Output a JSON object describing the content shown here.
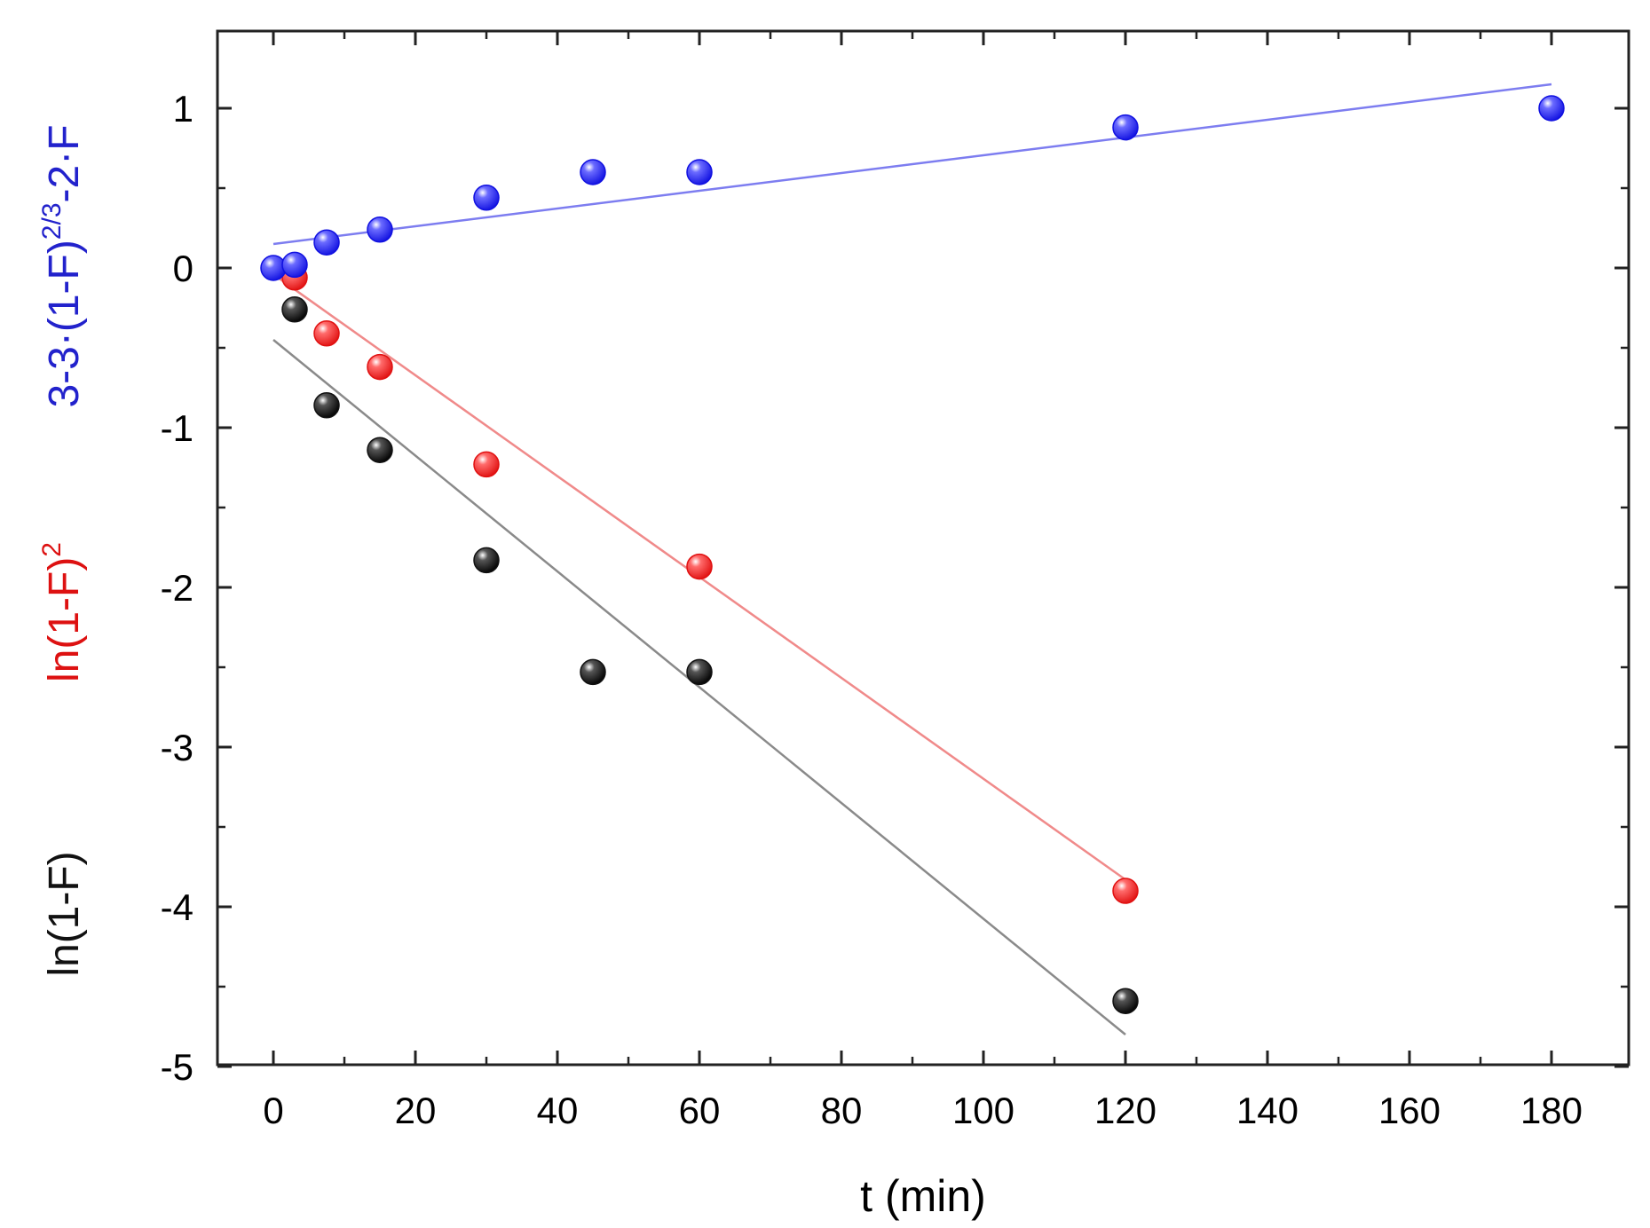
{
  "chart_data": {
    "type": "scatter",
    "xlabel": "t (min)",
    "xlim": [
      -8,
      190
    ],
    "ylim": [
      -5,
      1.5
    ],
    "x_ticks": [
      0,
      20,
      40,
      60,
      80,
      100,
      120,
      140,
      160,
      180
    ],
    "y_ticks": [
      -5,
      -4,
      -3,
      -2,
      -1,
      0,
      1
    ],
    "grid": false,
    "ylabels": [
      {
        "base": "3-3·(1-F)",
        "sup": "2/3",
        "tail": "-2·F",
        "color": "#2222cc"
      },
      {
        "base": "ln(1-F)",
        "sup": "2",
        "tail": "",
        "color": "#dd1111"
      },
      {
        "base": "ln(1-F)",
        "sup": "",
        "tail": "",
        "color": "#111111"
      }
    ],
    "series": [
      {
        "name": "3-3·(1-F)^2/3-2·F",
        "color": "#1010e0",
        "line_color": "#7d7df0",
        "x": [
          0,
          3,
          7.5,
          15,
          30,
          45,
          60,
          120,
          180
        ],
        "y": [
          0.0,
          0.02,
          0.16,
          0.24,
          0.44,
          0.6,
          0.6,
          0.88,
          1.0
        ],
        "fit": {
          "x": [
            0,
            180
          ],
          "y": [
            0.15,
            1.15
          ]
        }
      },
      {
        "name": "ln(1-F)^2",
        "color": "#e01010",
        "line_color": "#f08a8a",
        "x": [
          3,
          7.5,
          15,
          30,
          60,
          120
        ],
        "y": [
          -0.06,
          -0.41,
          -0.62,
          -1.23,
          -1.87,
          -3.9
        ],
        "fit": {
          "x": [
            0,
            120
          ],
          "y": [
            -0.04,
            -3.83
          ]
        }
      },
      {
        "name": "ln(1-F)",
        "color": "#111111",
        "line_color": "#8a8a8a",
        "x": [
          3,
          7.5,
          15,
          30,
          45,
          60,
          120
        ],
        "y": [
          -0.26,
          -0.86,
          -1.14,
          -1.83,
          -2.53,
          -2.53,
          -4.59
        ],
        "fit": {
          "x": [
            0,
            120
          ],
          "y": [
            -0.45,
            -4.8
          ]
        }
      }
    ]
  }
}
